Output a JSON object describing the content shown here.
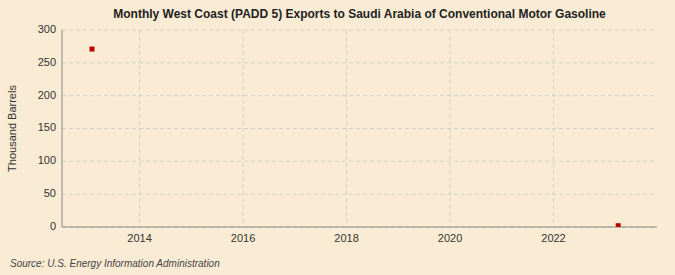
{
  "chart_data": {
    "type": "scatter",
    "title": "Monthly West Coast (PADD 5) Exports to Saudi Arabia of Conventional Motor Gasoline",
    "ylabel": "Thousand Barrels",
    "source": "Source: U.S. Energy Information Administration",
    "x": [
      2013.08,
      2023.25
    ],
    "values": [
      271,
      2
    ],
    "color": "#bb0000",
    "marker": "square",
    "xlim": [
      2012.5,
      2024.0
    ],
    "ylim": [
      0,
      300
    ],
    "xticks": [
      2014,
      2016,
      2018,
      2020,
      2022
    ],
    "yticks": [
      0,
      50,
      100,
      150,
      200,
      250,
      300
    ],
    "grid": true
  }
}
